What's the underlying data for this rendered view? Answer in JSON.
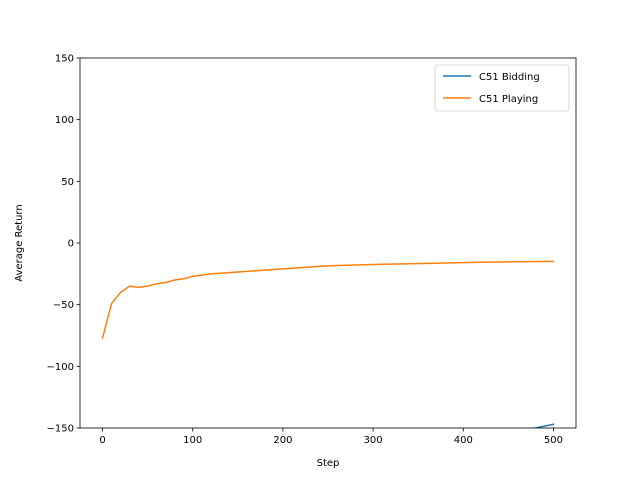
{
  "chart_data": {
    "type": "line",
    "title": "",
    "xlabel": "Step",
    "ylabel": "Average Return",
    "xlim": [
      -25,
      525
    ],
    "ylim": [
      -150,
      150
    ],
    "xticks": [
      0,
      100,
      200,
      300,
      400,
      500
    ],
    "yticks": [
      -150,
      -100,
      -50,
      0,
      50,
      100,
      150
    ],
    "xtick_labels": [
      "0",
      "100",
      "200",
      "300",
      "400",
      "500"
    ],
    "ytick_labels": [
      "−150",
      "−100",
      "−50",
      "0",
      "50",
      "100",
      "150"
    ],
    "grid": false,
    "legend_position": "top-right",
    "series": [
      {
        "name": "C51 Bidding",
        "color": "#1f77b4",
        "x": [
          460,
          480,
          500
        ],
        "y": [
          -152,
          -150,
          -147
        ]
      },
      {
        "name": "C51 Playing",
        "color": "#ff7f0e",
        "x": [
          0,
          10,
          20,
          30,
          40,
          50,
          60,
          70,
          80,
          90,
          100,
          110,
          120,
          130,
          140,
          150,
          160,
          170,
          180,
          190,
          200,
          210,
          220,
          230,
          240,
          250,
          260,
          270,
          280,
          290,
          300,
          320,
          340,
          360,
          380,
          400,
          420,
          440,
          460,
          480,
          500
        ],
        "y": [
          -77,
          -49,
          -40,
          -35,
          -36,
          -35,
          -33,
          -32,
          -30,
          -29,
          -27,
          -26,
          -25,
          -24.5,
          -24,
          -23.5,
          -23,
          -22.5,
          -22,
          -21.5,
          -21,
          -20.5,
          -20,
          -19.5,
          -19,
          -18.5,
          -18.2,
          -18,
          -17.8,
          -17.6,
          -17.4,
          -17.1,
          -16.8,
          -16.5,
          -16.2,
          -15.9,
          -15.6,
          -15.4,
          -15.2,
          -15,
          -14.9
        ]
      }
    ]
  }
}
